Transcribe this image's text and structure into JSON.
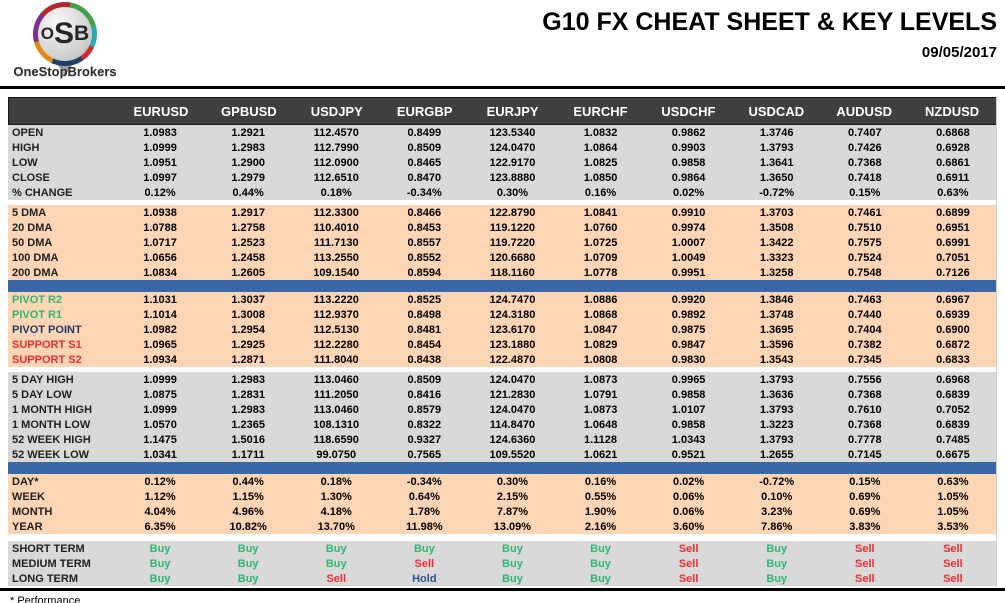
{
  "page": {
    "title": "G10 FX CHEAT SHEET & KEY LEVELS",
    "date": "09/05/2017",
    "footnote": "* Performance"
  },
  "logo": {
    "letters": [
      "O",
      "S",
      "B"
    ],
    "brand": "OneStopBrokers"
  },
  "colors": {
    "header_bg": "#3F3F3F",
    "gray_band": "#D9D9D9",
    "peach_band": "#FBD5B4",
    "blue_divider": "#3A67A8",
    "buy_green": "#2EB873",
    "sell_red": "#F22C2C",
    "hold_blue": "#33508F",
    "pivot_resistance_green": "#2EB873",
    "pivot_point_navy": "#1F3A68",
    "support_red": "#F22C2C"
  },
  "table": {
    "columns": [
      "EURUSD",
      "GPBUSD",
      "USDJPY",
      "EURGBP",
      "EURJPY",
      "EURCHF",
      "USDCHF",
      "USDCAD",
      "AUDUSD",
      "NZDUSD"
    ],
    "sections": [
      {
        "name": "ohlc",
        "band": "gray",
        "rows": [
          {
            "label": "OPEN",
            "values": [
              "1.0983",
              "1.2921",
              "112.4570",
              "0.8499",
              "123.5340",
              "1.0832",
              "0.9862",
              "1.3746",
              "0.7407",
              "0.6868"
            ]
          },
          {
            "label": "HIGH",
            "values": [
              "1.0999",
              "1.2983",
              "112.7990",
              "0.8509",
              "124.0470",
              "1.0864",
              "0.9903",
              "1.3793",
              "0.7426",
              "0.6928"
            ]
          },
          {
            "label": "LOW",
            "values": [
              "1.0951",
              "1.2900",
              "112.0900",
              "0.8465",
              "122.9170",
              "1.0825",
              "0.9858",
              "1.3641",
              "0.7368",
              "0.6861"
            ]
          },
          {
            "label": "CLOSE",
            "values": [
              "1.0997",
              "1.2979",
              "112.6510",
              "0.8470",
              "123.8880",
              "1.0850",
              "0.9864",
              "1.3650",
              "0.7418",
              "0.6911"
            ]
          },
          {
            "label": "% CHANGE",
            "values": [
              "0.12%",
              "0.44%",
              "0.18%",
              "-0.34%",
              "0.30%",
              "0.16%",
              "0.02%",
              "-0.72%",
              "0.15%",
              "0.63%"
            ]
          }
        ]
      },
      {
        "name": "moving-averages",
        "band": "peach",
        "gap_before": true,
        "rows": [
          {
            "label": "5 DMA",
            "values": [
              "1.0938",
              "1.2917",
              "112.3300",
              "0.8466",
              "122.8790",
              "1.0841",
              "0.9910",
              "1.3703",
              "0.7461",
              "0.6899"
            ]
          },
          {
            "label": "20 DMA",
            "values": [
              "1.0788",
              "1.2758",
              "110.4010",
              "0.8453",
              "119.1220",
              "1.0760",
              "0.9974",
              "1.3508",
              "0.7510",
              "0.6951"
            ]
          },
          {
            "label": "50 DMA",
            "values": [
              "1.0717",
              "1.2523",
              "111.7130",
              "0.8557",
              "119.7220",
              "1.0725",
              "1.0007",
              "1.3422",
              "0.7575",
              "0.6991"
            ]
          },
          {
            "label": "100 DMA",
            "values": [
              "1.0656",
              "1.2458",
              "113.2550",
              "0.8552",
              "120.6680",
              "1.0709",
              "1.0049",
              "1.3323",
              "0.7524",
              "0.7051"
            ]
          },
          {
            "label": "200 DMA",
            "values": [
              "1.0834",
              "1.2605",
              "109.1540",
              "0.8594",
              "118.1160",
              "1.0778",
              "0.9951",
              "1.3258",
              "0.7548",
              "0.7126"
            ]
          }
        ]
      },
      {
        "name": "pivots",
        "band": "peach",
        "divider_before": true,
        "rows": [
          {
            "label": "PIVOT R2",
            "label_color": "#2EB873",
            "values": [
              "1.1031",
              "1.3037",
              "113.2220",
              "0.8525",
              "124.7470",
              "1.0886",
              "0.9920",
              "1.3846",
              "0.7463",
              "0.6967"
            ]
          },
          {
            "label": "PIVOT R1",
            "label_color": "#2EB873",
            "values": [
              "1.1014",
              "1.3008",
              "112.9370",
              "0.8498",
              "124.3180",
              "1.0868",
              "0.9892",
              "1.3748",
              "0.7440",
              "0.6939"
            ]
          },
          {
            "label": "PIVOT POINT",
            "label_color": "#1F3A68",
            "values": [
              "1.0982",
              "1.2954",
              "112.5130",
              "0.8481",
              "123.6170",
              "1.0847",
              "0.9875",
              "1.3695",
              "0.7404",
              "0.6900"
            ]
          },
          {
            "label": "SUPPORT S1",
            "label_color": "#F22C2C",
            "values": [
              "1.0965",
              "1.2925",
              "112.2280",
              "0.8454",
              "123.1880",
              "1.0829",
              "0.9847",
              "1.3596",
              "0.7382",
              "0.6872"
            ]
          },
          {
            "label": "SUPPORT S2",
            "label_color": "#F22C2C",
            "values": [
              "1.0934",
              "1.2871",
              "111.8040",
              "0.8438",
              "122.4870",
              "1.0808",
              "0.9830",
              "1.3543",
              "0.7345",
              "0.6833"
            ]
          }
        ]
      },
      {
        "name": "ranges",
        "band": "gray",
        "gap_before": true,
        "rows": [
          {
            "label": "5 DAY HIGH",
            "values": [
              "1.0999",
              "1.2983",
              "113.0460",
              "0.8509",
              "124.0470",
              "1.0873",
              "0.9965",
              "1.3793",
              "0.7556",
              "0.6968"
            ]
          },
          {
            "label": "5 DAY LOW",
            "values": [
              "1.0875",
              "1.2831",
              "111.2050",
              "0.8416",
              "121.2830",
              "1.0791",
              "0.9858",
              "1.3636",
              "0.7368",
              "0.6839"
            ]
          },
          {
            "label": "1 MONTH HIGH",
            "values": [
              "1.0999",
              "1.2983",
              "113.0460",
              "0.8579",
              "124.0470",
              "1.0873",
              "1.0107",
              "1.3793",
              "0.7610",
              "0.7052"
            ]
          },
          {
            "label": "1 MONTH LOW",
            "values": [
              "1.0570",
              "1.2365",
              "108.1310",
              "0.8322",
              "114.8470",
              "1.0648",
              "0.9858",
              "1.3223",
              "0.7368",
              "0.6839"
            ]
          },
          {
            "label": "52 WEEK HIGH",
            "values": [
              "1.1475",
              "1.5016",
              "118.6590",
              "0.9327",
              "124.6360",
              "1.1128",
              "1.0343",
              "1.3793",
              "0.7778",
              "0.7485"
            ]
          },
          {
            "label": "52 WEEK LOW",
            "values": [
              "1.0341",
              "1.1711",
              "99.0750",
              "0.7565",
              "109.5520",
              "1.0621",
              "0.9521",
              "1.2655",
              "0.7145",
              "0.6675"
            ]
          }
        ]
      },
      {
        "name": "performance",
        "band": "peach",
        "divider_before": true,
        "rows": [
          {
            "label": "DAY*",
            "values": [
              "0.12%",
              "0.44%",
              "0.18%",
              "-0.34%",
              "0.30%",
              "0.16%",
              "0.02%",
              "-0.72%",
              "0.15%",
              "0.63%"
            ]
          },
          {
            "label": "WEEK",
            "values": [
              "1.12%",
              "1.15%",
              "1.30%",
              "0.64%",
              "2.15%",
              "0.55%",
              "0.06%",
              "0.10%",
              "0.69%",
              "1.05%"
            ]
          },
          {
            "label": "MONTH",
            "values": [
              "4.04%",
              "4.96%",
              "4.18%",
              "1.78%",
              "7.87%",
              "1.90%",
              "0.06%",
              "3.23%",
              "0.69%",
              "1.05%"
            ]
          },
          {
            "label": "YEAR",
            "values": [
              "6.35%",
              "10.82%",
              "13.70%",
              "11.98%",
              "13.09%",
              "2.16%",
              "3.60%",
              "7.86%",
              "3.83%",
              "3.53%"
            ]
          }
        ]
      },
      {
        "name": "signals",
        "band": "gray",
        "gap_before": true,
        "gap_large": true,
        "signal_row": true,
        "rows": [
          {
            "label": "SHORT TERM",
            "values": [
              "Buy",
              "Buy",
              "Buy",
              "Buy",
              "Buy",
              "Buy",
              "Sell",
              "Buy",
              "Sell",
              "Sell"
            ]
          },
          {
            "label": "MEDIUM TERM",
            "values": [
              "Buy",
              "Buy",
              "Buy",
              "Sell",
              "Buy",
              "Buy",
              "Sell",
              "Buy",
              "Sell",
              "Sell"
            ]
          },
          {
            "label": "LONG TERM",
            "values": [
              "Buy",
              "Buy",
              "Sell",
              "Hold",
              "Buy",
              "Buy",
              "Sell",
              "Buy",
              "Sell",
              "Sell"
            ]
          }
        ]
      }
    ]
  }
}
